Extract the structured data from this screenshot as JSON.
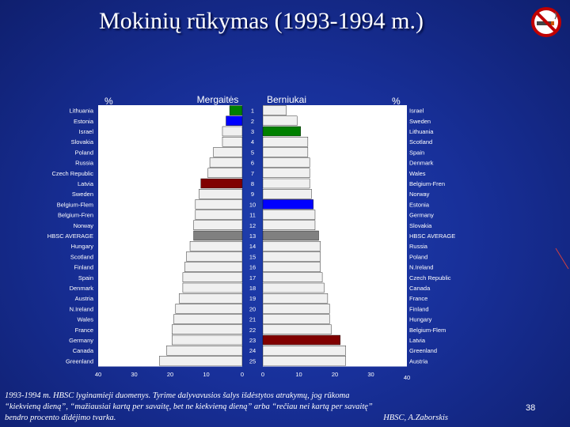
{
  "title": "Mokinių rūkymas (1993-1994 m.)",
  "slide_number": "38",
  "footer": {
    "line1": "1993-1994 m. HBSC lyginamieji duomenys. Tyrime dalyvavusios šalys išdėstytos atrakymų, jog rūkoma",
    "line2": "“kiekvieną dieną”, “mažiausiai kartą per savaitę, bet ne kiekvieną dieną” arba “rečiau nei kartą per savaitę”",
    "line3": "bendro procento didėjimo tvarka.",
    "author": "HBSC, A.Zaborskis"
  },
  "colors": {
    "bar": "#f0f0f0",
    "lithuania": "#008000",
    "estonia": "#0000ff",
    "latvia": "#800000",
    "average": "#808080",
    "text": "#ffffff"
  },
  "chart_data": {
    "type": "bar",
    "ranks": [
      1,
      2,
      3,
      4,
      5,
      6,
      7,
      8,
      9,
      10,
      11,
      12,
      13,
      14,
      15,
      16,
      17,
      18,
      19,
      20,
      21,
      22,
      23,
      24,
      25
    ],
    "girls": {
      "title": "Mergaitės",
      "unit": "%",
      "xlim": [
        40,
        0
      ],
      "ticks": [
        "40",
        "30",
        "20",
        "10",
        "0"
      ],
      "categories": [
        "Lithuania",
        "Estonia",
        "Israel",
        "Slovakia",
        "Poland",
        "Russia",
        "Czech Republic",
        "Latvia",
        "Sweden",
        "Belgium-Flem",
        "Belgium-Fren",
        "Norway",
        "HBSC AVERAGE",
        "Hungary",
        "Scotland",
        "Finland",
        "Spain",
        "Denmark",
        "Austria",
        "N.Ireland",
        "Wales",
        "France",
        "Germany",
        "Canada",
        "Greenland"
      ],
      "values": [
        3.5,
        4.5,
        5.5,
        5.5,
        8,
        9,
        9.5,
        11.5,
        12,
        13,
        13,
        13.5,
        13.5,
        14.5,
        15.5,
        16,
        16.5,
        16.5,
        17.5,
        18.5,
        19,
        19.5,
        19.5,
        21,
        23
      ]
    },
    "boys": {
      "title": "Berniukai",
      "unit": "%",
      "xlim": [
        0,
        40
      ],
      "ticks": [
        "0",
        "10",
        "20",
        "30",
        "40"
      ],
      "categories": [
        "Israel",
        "Sweden",
        "Lithuania",
        "Scotland",
        "Spain",
        "Denmark",
        "Wales",
        "Belgium-Fren",
        "Norway",
        "Estonia",
        "Germany",
        "Slovakia",
        "HBSC AVERAGE",
        "Russia",
        "Poland",
        "N.Ireland",
        "Czech Republic",
        "Canada",
        "France",
        "Finland",
        "Hungary",
        "Belgium-Flem",
        "Latvia",
        "Greenland",
        "Austria"
      ],
      "values": [
        6.5,
        9.5,
        10.5,
        12.5,
        12.5,
        13,
        13,
        13,
        13.5,
        14,
        14.5,
        14.5,
        15.5,
        16,
        16,
        16,
        16.5,
        17,
        18,
        18.5,
        18.5,
        19,
        21.5,
        23,
        23
      ]
    }
  }
}
